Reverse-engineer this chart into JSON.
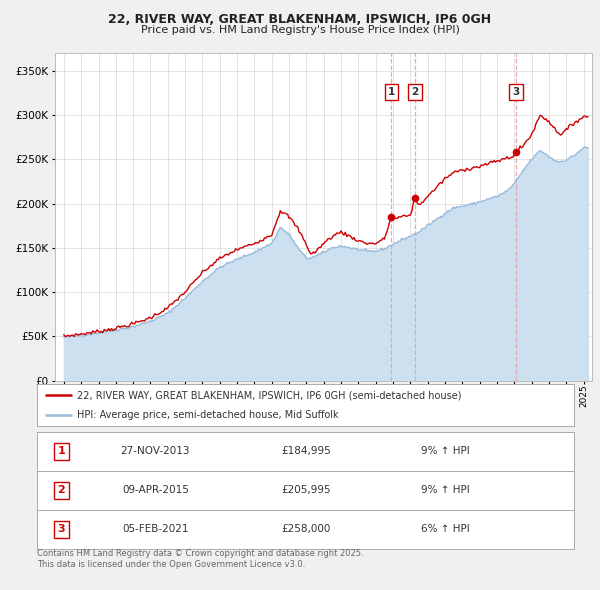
{
  "title": "22, RIVER WAY, GREAT BLAKENHAM, IPSWICH, IP6 0GH",
  "subtitle": "Price paid vs. HM Land Registry's House Price Index (HPI)",
  "legend_line1": "22, RIVER WAY, GREAT BLAKENHAM, IPSWICH, IP6 0GH (semi-detached house)",
  "legend_line2": "HPI: Average price, semi-detached house, Mid Suffolk",
  "footnote1": "Contains HM Land Registry data © Crown copyright and database right 2025.",
  "footnote2": "This data is licensed under the Open Government Licence v3.0.",
  "sale_events": [
    {
      "num": 1,
      "date": "27-NOV-2013",
      "date_x": 2013.91,
      "price": 184995,
      "label": "£184,995",
      "pct": "9% ↑ HPI"
    },
    {
      "num": 2,
      "date": "09-APR-2015",
      "date_x": 2015.27,
      "price": 205995,
      "label": "£205,995",
      "pct": "9% ↑ HPI"
    },
    {
      "num": 3,
      "date": "05-FEB-2021",
      "date_x": 2021.1,
      "price": 258000,
      "label": "£258,000",
      "pct": "6% ↑ HPI"
    }
  ],
  "vline_color": "#e8a0a0",
  "house_line_color": "#cc0000",
  "hpi_line_color": "#99bbdd",
  "hpi_fill_color": "#cce0f0",
  "ylim": [
    0,
    370000
  ],
  "yticks": [
    0,
    50000,
    100000,
    150000,
    200000,
    250000,
    300000,
    350000
  ],
  "xlim_start": 1994.5,
  "xlim_end": 2025.5,
  "background_color": "#f0f0f0",
  "plot_bg_color": "#ffffff"
}
